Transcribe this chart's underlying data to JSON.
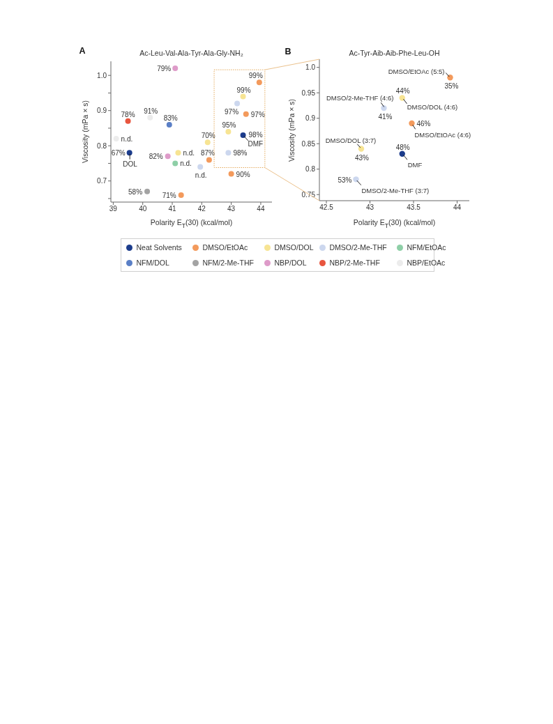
{
  "chart_data": [
    {
      "type": "scatter",
      "title": "Ac-Leu-Val-Ala-Tyr-Ala-Gly-NH₂",
      "xlabel": "Polarity E$_{T}$(30) (kcal/mol)",
      "ylabel": "Viscosity (mPa × s)",
      "xlim": [
        38.92,
        44.38
      ],
      "xticks": [
        39,
        40,
        41,
        42,
        43,
        44
      ],
      "ylim": [
        0.64,
        1.04
      ],
      "yticks": [
        {
          "value": 0.65,
          "label": null
        },
        0.7,
        {
          "value": 0.75,
          "label": null
        },
        0.8,
        {
          "value": 0.85,
          "label": null
        },
        0.9,
        {
          "value": 0.95,
          "label": null
        },
        {
          "value": 1,
          "label": "1.0"
        }
      ],
      "marker": "circle",
      "legend": "bottom",
      "series": [
        {
          "name": "Neat Solvents",
          "color": "#1c3c8c",
          "x": [
            43.4,
            39.55
          ],
          "values": [
            0.83,
            0.78
          ]
        },
        {
          "name": "DMSO/EtOAc",
          "color": "#f39a5c",
          "x": [
            43.95,
            43.5,
            42.25,
            43.0,
            41.3
          ],
          "values": [
            0.98,
            0.89,
            0.76,
            0.72,
            0.66
          ]
        },
        {
          "name": "DMSO/DOL",
          "color": "#f7e493",
          "x": [
            43.4,
            42.9,
            42.2,
            41.2
          ],
          "values": [
            0.94,
            0.84,
            0.81,
            0.78
          ]
        },
        {
          "name": "DMSO/2-Me-THF",
          "color": "#ccd7ee",
          "x": [
            43.2,
            42.9,
            41.95
          ],
          "values": [
            0.92,
            0.78,
            0.74
          ]
        },
        {
          "name": "NFM/EtOAc",
          "color": "#8ecfa7",
          "x": [
            41.1
          ],
          "values": [
            0.75
          ]
        },
        {
          "name": "NFM/DOL",
          "color": "#5a7fc6",
          "x": [
            40.9
          ],
          "values": [
            0.86
          ]
        },
        {
          "name": "NFM/2-Me-THF",
          "color": "#a3a3a3",
          "x": [
            40.15
          ],
          "values": [
            0.67
          ]
        },
        {
          "name": "NBP/DOL",
          "color": "#de9bc9",
          "x": [
            41.1,
            40.85
          ],
          "values": [
            1.02,
            0.77
          ]
        },
        {
          "name": "NBP/2-Me-THF",
          "color": "#e8553e",
          "x": [
            39.5
          ],
          "values": [
            0.87
          ]
        },
        {
          "name": "NBP/EtOAc",
          "color": "#ececec",
          "x": [
            40.25,
            39.1
          ],
          "values": [
            0.88,
            0.82
          ]
        }
      ],
      "annotations": [
        "A",
        {
          "text": "79%",
          "x": 41.1,
          "y": 1.02
        },
        {
          "text": "99%",
          "x": 43.95,
          "y": 0.98
        },
        {
          "text": "99%",
          "x": 43.4,
          "y": 0.94
        },
        {
          "text": "97%",
          "x": 43.2,
          "y": 0.92
        },
        {
          "text": "97%",
          "x": 43.5,
          "y": 0.89
        },
        {
          "text": "78%",
          "x": 39.5,
          "y": 0.87
        },
        {
          "text": "91%",
          "x": 40.25,
          "y": 0.88
        },
        {
          "text": "83%",
          "x": 40.9,
          "y": 0.86
        },
        {
          "text": "n.d.",
          "x": 39.1,
          "y": 0.82
        },
        {
          "text": "95%",
          "x": 42.9,
          "y": 0.84
        },
        {
          "text": "98%",
          "x": 43.4,
          "y": 0.83
        },
        {
          "text": "DMF",
          "x": 43.4,
          "y": 0.83
        },
        {
          "text": "70%",
          "x": 42.2,
          "y": 0.81
        },
        {
          "text": "67%",
          "x": 39.55,
          "y": 0.78
        },
        {
          "text": "DOL",
          "x": 39.55,
          "y": 0.78
        },
        {
          "text": "82%",
          "x": 40.85,
          "y": 0.77
        },
        {
          "text": "n.d.",
          "x": 41.2,
          "y": 0.78
        },
        {
          "text": "98%",
          "x": 42.9,
          "y": 0.78
        },
        {
          "text": "n.d.",
          "x": 41.1,
          "y": 0.75
        },
        {
          "text": "87%",
          "x": 42.25,
          "y": 0.76
        },
        {
          "text": "n.d.",
          "x": 41.95,
          "y": 0.74
        },
        {
          "text": "90%",
          "x": 43.0,
          "y": 0.72
        },
        {
          "text": "58%",
          "x": 40.15,
          "y": 0.67
        },
        {
          "text": "71%",
          "x": 41.3,
          "y": 0.66
        }
      ]
    },
    {
      "type": "scatter",
      "title": "Ac-Tyr-Aib-Aib-Phe-Leu-OH",
      "xlabel": "Polarity E$_{T}$(30) (kcal/mol)",
      "ylabel": "Viscosity (mPa × s)",
      "xlim": [
        42.42,
        44.14
      ],
      "xticks": [
        42.5,
        43,
        43.5,
        44
      ],
      "ylim": [
        0.738,
        1.016
      ],
      "yticks": [
        0.75,
        0.8,
        0.85,
        0.9,
        0.95,
        {
          "value": 1,
          "label": "1.0"
        }
      ],
      "marker": "circle",
      "series": [
        {
          "color": "#1c3c8c",
          "x": [
            43.37
          ],
          "values": [
            0.83
          ]
        },
        {
          "color": "#f39a5c",
          "x": [
            43.92,
            43.48
          ],
          "values": [
            0.98,
            0.89
          ]
        },
        {
          "color": "#f7e493",
          "x": [
            43.37,
            42.9
          ],
          "values": [
            0.94,
            0.84
          ]
        },
        {
          "color": "#ccd7ee",
          "x": [
            43.16,
            42.84
          ],
          "values": [
            0.92,
            0.78
          ]
        }
      ],
      "annotations": [
        "B",
        {
          "text": "DMSO/EtOAc (5:5)",
          "x": 43.92,
          "y": 0.98
        },
        {
          "text": "35%",
          "x": 43.92,
          "y": 0.98
        },
        {
          "text": "44%",
          "x": 43.37,
          "y": 0.94
        },
        {
          "text": "DMSO/DOL (4:6)",
          "x": 43.37,
          "y": 0.94
        },
        {
          "text": "DMSO/2-Me-THF (4:6)",
          "x": 43.16,
          "y": 0.92
        },
        {
          "text": "41%",
          "x": 43.16,
          "y": 0.92
        },
        {
          "text": "46%",
          "x": 43.48,
          "y": 0.89
        },
        {
          "text": "DMSO/EtOAc (4:6)",
          "x": 43.48,
          "y": 0.89
        },
        {
          "text": "DMSO/DOL (3:7)",
          "x": 42.9,
          "y": 0.84
        },
        {
          "text": "43%",
          "x": 42.9,
          "y": 0.84
        },
        {
          "text": "48%",
          "x": 43.37,
          "y": 0.83
        },
        {
          "text": "DMF",
          "x": 43.37,
          "y": 0.83
        },
        {
          "text": "53%",
          "x": 42.84,
          "y": 0.78
        },
        {
          "text": "DMSO/2-Me-THF (3:7)",
          "x": 42.84,
          "y": 0.78
        }
      ]
    }
  ]
}
